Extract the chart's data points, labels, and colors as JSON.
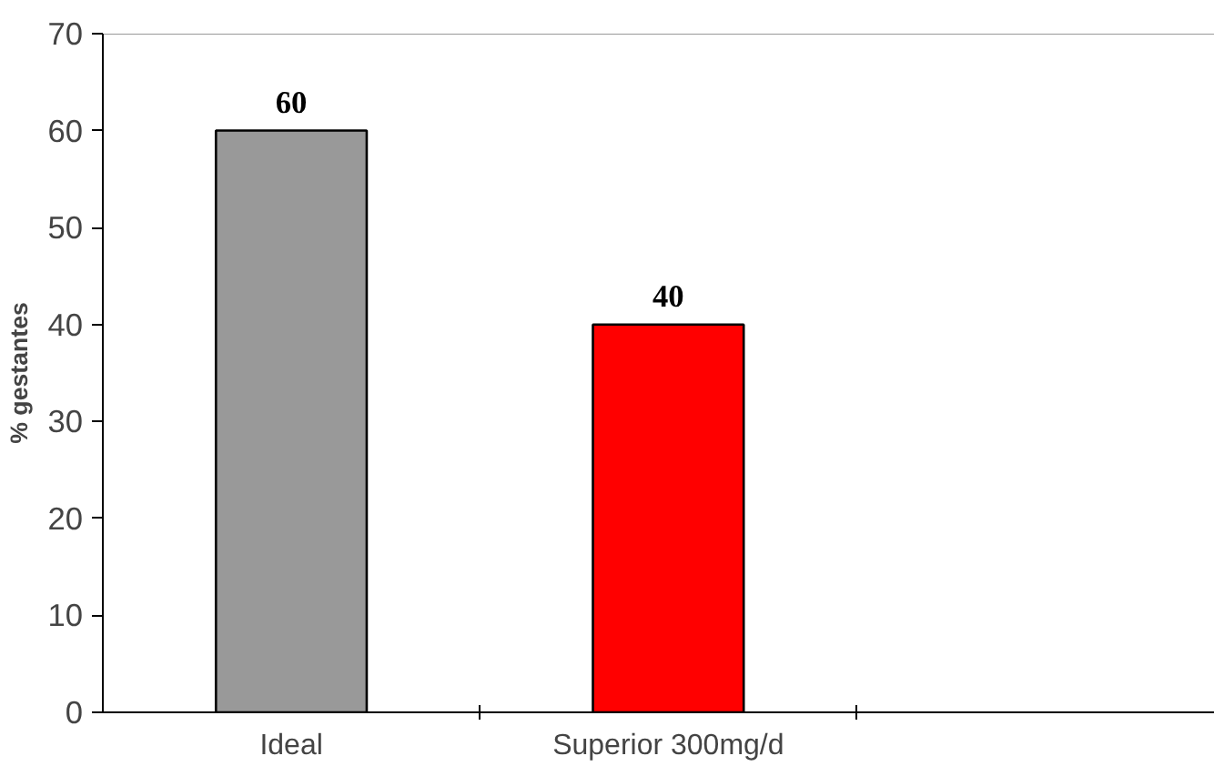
{
  "chart_data": {
    "type": "bar",
    "ylabel": "% gestantes",
    "categories": [
      "Ideal",
      "Superior 300mg/d"
    ],
    "values": [
      60,
      40
    ],
    "colors": [
      "#999999",
      "#ff0000"
    ],
    "ylim": [
      0,
      70
    ],
    "yticks": [
      0,
      10,
      20,
      30,
      40,
      50,
      60,
      70
    ],
    "data_labels": true,
    "grid": false
  }
}
